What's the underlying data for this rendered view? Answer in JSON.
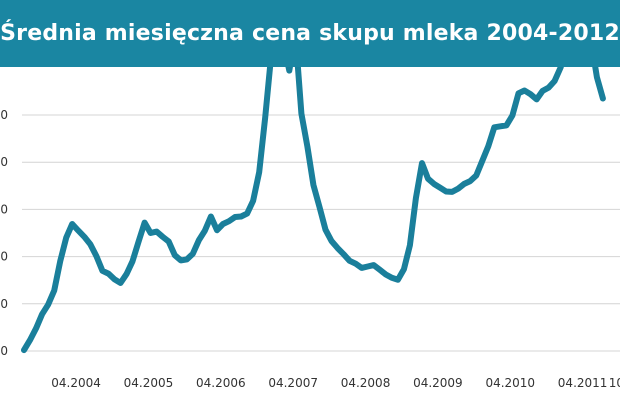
{
  "header": {
    "title": "Średnia miesięczna cena skupu mleka 2004-2012",
    "background": "#1a86a2"
  },
  "chart_data": {
    "type": "line",
    "title": "Średnia miesięczna cena skupu mleka 2004-2012",
    "xlabel": "",
    "ylabel": "",
    "x_tick_labels": [
      "04.2004",
      "04.2005",
      "04.2006",
      "04.2007",
      "04.2008",
      "04.2009",
      "04.2010",
      "04.2011",
      "10"
    ],
    "y_tick_labels_visible": [
      "0",
      "0",
      "0",
      "0",
      "0",
      "0"
    ],
    "grid": true,
    "line_color": "#1a7f9b",
    "series": [
      {
        "x": [
          "01.2004",
          "02.2004",
          "03.2004",
          "04.2004",
          "05.2004",
          "06.2004",
          "07.2004",
          "08.2004",
          "09.2004",
          "10.2004",
          "11.2004",
          "12.2004",
          "01.2005",
          "02.2005",
          "03.2005",
          "04.2005",
          "05.2005",
          "06.2005",
          "07.2005",
          "08.2005",
          "09.2005",
          "10.2005",
          "11.2005",
          "12.2005",
          "01.2006",
          "02.2006",
          "03.2006",
          "04.2006",
          "05.2006",
          "06.2006",
          "07.2006",
          "08.2006",
          "09.2006",
          "10.2006",
          "11.2006",
          "12.2006",
          "01.2007",
          "02.2007",
          "03.2007",
          "04.2007",
          "05.2007",
          "06.2007",
          "07.2007",
          "08.2007",
          "09.2007",
          "10.2007",
          "11.2007",
          "12.2007",
          "01.2008",
          "02.2008",
          "03.2008",
          "04.2008",
          "05.2008",
          "06.2008",
          "07.2008",
          "08.2008",
          "09.2008",
          "10.2008",
          "11.2008",
          "12.2008",
          "01.2009",
          "02.2009",
          "03.2009",
          "04.2009",
          "05.2009",
          "06.2009",
          "07.2009",
          "08.2009",
          "09.2009",
          "10.2009",
          "11.2009",
          "12.2009",
          "01.2010",
          "02.2010",
          "03.2010",
          "04.2010",
          "05.2010",
          "06.2010",
          "07.2010",
          "08.2010",
          "09.2010",
          "10.2010",
          "11.2010",
          "12.2010",
          "01.2011",
          "02.2011",
          "03.2011",
          "04.2011",
          "05.2011",
          "06.2011",
          "07.2011",
          "08.2011",
          "09.2011",
          "10.2011",
          "11.2011",
          "12.2011",
          "01.2012"
        ],
        "values": [
          0.02,
          0.23,
          0.48,
          0.78,
          0.98,
          1.28,
          1.9,
          2.4,
          2.69,
          2.55,
          2.42,
          2.26,
          2.01,
          1.7,
          1.64,
          1.52,
          1.44,
          1.63,
          1.9,
          2.32,
          2.72,
          2.5,
          2.53,
          2.42,
          2.32,
          2.03,
          1.92,
          1.94,
          2.06,
          2.35,
          2.55,
          2.85,
          2.56,
          2.69,
          2.75,
          2.84,
          2.85,
          2.91,
          3.18,
          3.79,
          4.95,
          6.27,
          6.79,
          6.54,
          5.94,
          6.72,
          5.03,
          4.33,
          3.52,
          3.05,
          2.57,
          2.33,
          2.18,
          2.05,
          1.91,
          1.85,
          1.76,
          1.79,
          1.82,
          1.72,
          1.62,
          1.55,
          1.51,
          1.73,
          2.24,
          3.24,
          3.98,
          3.65,
          3.54,
          3.46,
          3.38,
          3.37,
          3.44,
          3.54,
          3.6,
          3.72,
          4.03,
          4.34,
          4.74,
          4.76,
          4.78,
          4.99,
          5.46,
          5.52,
          5.44,
          5.33,
          5.51,
          5.58,
          5.72,
          6.01,
          6.55,
          6.91,
          6.66,
          6.63,
          6.61,
          5.8,
          5.35
        ]
      }
    ]
  }
}
